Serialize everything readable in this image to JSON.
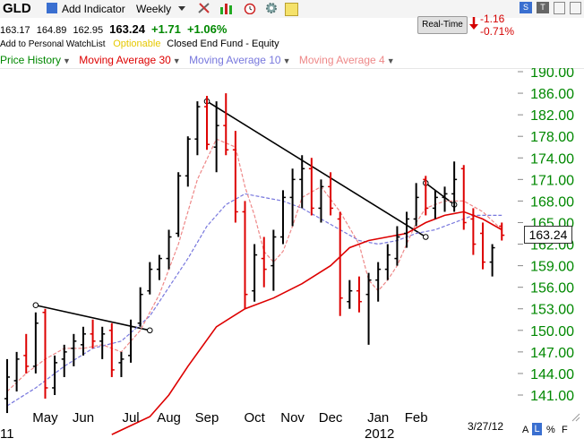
{
  "header": {
    "symbol": "GLD",
    "add_indicator": "Add Indicator",
    "period": "Weekly",
    "realtime": "Real-Time",
    "change_value": "-1.16",
    "change_pct": "-0.71%"
  },
  "quote": {
    "open": "163.17",
    "high": "164.89",
    "low": "162.95",
    "last": "163.24",
    "change": "+1.71",
    "change_pct": "+1.06%"
  },
  "info": {
    "watchlist": "Add to Personal WatchList",
    "optionable": "Optionable",
    "fund_type": "Closed End Fund - Equity"
  },
  "legend": {
    "price": "Price History",
    "ma30": "Moving Average 30",
    "ma10": "Moving Average 10",
    "ma4": "Moving Average 4"
  },
  "footer": {
    "date": "3/27/12",
    "year_left": "11",
    "year_right": "2012",
    "btn_a": "A",
    "btn_l": "L",
    "btn_pct": "%",
    "btn_f": "F"
  },
  "colors": {
    "ma30": "#dd0000",
    "ma10": "#7777dd",
    "ma4": "#ee8888",
    "up": "#000000",
    "down": "#dd0000",
    "axis_text": "#008800"
  },
  "chart_data": {
    "type": "ohlc",
    "ylim": [
      139.5,
      191.5
    ],
    "yticks": [
      141,
      144,
      147,
      150,
      153,
      156,
      159,
      162,
      165,
      168,
      171,
      174,
      178,
      182,
      186,
      190
    ],
    "ytick_labels": [
      "141.00",
      "144.00",
      "147.00",
      "150.00",
      "153.00",
      "156.00",
      "159.00",
      "162.00",
      "165.00",
      "168.00",
      "171.00",
      "174.00",
      "178.00",
      "182.00",
      "186.00",
      "190.00"
    ],
    "last_price_label": "163.24",
    "months": [
      "May",
      "Jun",
      "Jul",
      "Aug",
      "Sep",
      "Oct",
      "Nov",
      "Dec",
      "Jan",
      "Feb"
    ],
    "month_week_index": [
      4,
      8,
      13,
      17,
      21,
      26,
      30,
      34,
      39,
      43
    ],
    "bars": [
      {
        "o": 140.5,
        "h": 146.0,
        "l": 138.5,
        "c": 143.5
      },
      {
        "o": 143.0,
        "h": 147.0,
        "l": 141.5,
        "c": 146.0
      },
      {
        "o": 146.5,
        "h": 149.5,
        "l": 144.0,
        "c": 145.0
      },
      {
        "o": 145.0,
        "h": 152.5,
        "l": 144.0,
        "c": 151.0
      },
      {
        "o": 152.5,
        "h": 153.0,
        "l": 140.5,
        "c": 142.0
      },
      {
        "o": 142.0,
        "h": 146.5,
        "l": 141.0,
        "c": 145.5
      },
      {
        "o": 146.0,
        "h": 148.0,
        "l": 143.5,
        "c": 147.0
      },
      {
        "o": 147.5,
        "h": 149.5,
        "l": 145.0,
        "c": 148.5
      },
      {
        "o": 148.0,
        "h": 150.5,
        "l": 146.5,
        "c": 149.5
      },
      {
        "o": 149.5,
        "h": 151.5,
        "l": 147.5,
        "c": 148.5
      },
      {
        "o": 148.5,
        "h": 150.5,
        "l": 146.0,
        "c": 149.5
      },
      {
        "o": 150.0,
        "h": 151.0,
        "l": 143.5,
        "c": 144.5
      },
      {
        "o": 145.5,
        "h": 147.0,
        "l": 143.5,
        "c": 146.0
      },
      {
        "o": 146.5,
        "h": 151.5,
        "l": 145.5,
        "c": 150.5
      },
      {
        "o": 151.0,
        "h": 156.0,
        "l": 150.5,
        "c": 155.0
      },
      {
        "o": 155.5,
        "h": 159.5,
        "l": 155.0,
        "c": 158.5
      },
      {
        "o": 158.5,
        "h": 160.5,
        "l": 157.0,
        "c": 160.0
      },
      {
        "o": 160.0,
        "h": 164.0,
        "l": 158.5,
        "c": 163.0
      },
      {
        "o": 163.5,
        "h": 172.0,
        "l": 163.0,
        "c": 171.5
      },
      {
        "o": 171.5,
        "h": 178.0,
        "l": 170.0,
        "c": 177.5
      },
      {
        "o": 177.5,
        "h": 184.5,
        "l": 174.5,
        "c": 183.5
      },
      {
        "o": 183.5,
        "h": 185.5,
        "l": 175.5,
        "c": 176.5
      },
      {
        "o": 176.0,
        "h": 184.5,
        "l": 172.0,
        "c": 180.0
      },
      {
        "o": 180.0,
        "h": 186.0,
        "l": 174.5,
        "c": 175.5
      },
      {
        "o": 175.5,
        "h": 179.0,
        "l": 165.0,
        "c": 166.5
      },
      {
        "o": 166.5,
        "h": 168.0,
        "l": 153.0,
        "c": 155.0
      },
      {
        "o": 155.5,
        "h": 162.0,
        "l": 154.0,
        "c": 160.5
      },
      {
        "o": 160.0,
        "h": 163.0,
        "l": 156.0,
        "c": 158.5
      },
      {
        "o": 159.0,
        "h": 164.0,
        "l": 155.5,
        "c": 163.0
      },
      {
        "o": 163.0,
        "h": 169.5,
        "l": 162.0,
        "c": 168.5
      },
      {
        "o": 168.5,
        "h": 172.5,
        "l": 164.5,
        "c": 171.0
      },
      {
        "o": 171.0,
        "h": 174.5,
        "l": 167.0,
        "c": 172.5
      },
      {
        "o": 172.5,
        "h": 174.0,
        "l": 166.0,
        "c": 167.0
      },
      {
        "o": 167.0,
        "h": 171.0,
        "l": 165.0,
        "c": 170.0
      },
      {
        "o": 170.0,
        "h": 172.0,
        "l": 166.0,
        "c": 167.0
      },
      {
        "o": 165.5,
        "h": 166.5,
        "l": 152.0,
        "c": 154.5
      },
      {
        "o": 154.0,
        "h": 157.0,
        "l": 153.0,
        "c": 155.5
      },
      {
        "o": 155.5,
        "h": 157.5,
        "l": 152.5,
        "c": 154.0
      },
      {
        "o": 155.0,
        "h": 158.0,
        "l": 148.0,
        "c": 157.0
      },
      {
        "o": 157.0,
        "h": 159.5,
        "l": 154.0,
        "c": 158.5
      },
      {
        "o": 158.5,
        "h": 162.0,
        "l": 157.0,
        "c": 160.5
      },
      {
        "o": 160.0,
        "h": 164.5,
        "l": 159.0,
        "c": 163.0
      },
      {
        "o": 163.5,
        "h": 166.5,
        "l": 161.5,
        "c": 165.5
      },
      {
        "o": 165.5,
        "h": 170.5,
        "l": 164.5,
        "c": 168.5
      },
      {
        "o": 171.0,
        "h": 171.5,
        "l": 166.0,
        "c": 167.0
      },
      {
        "o": 167.0,
        "h": 169.5,
        "l": 165.5,
        "c": 168.5
      },
      {
        "o": 168.5,
        "h": 170.0,
        "l": 166.5,
        "c": 169.0
      },
      {
        "o": 169.0,
        "h": 173.5,
        "l": 166.5,
        "c": 171.0
      },
      {
        "o": 172.5,
        "h": 173.0,
        "l": 164.0,
        "c": 165.0
      },
      {
        "o": 165.5,
        "h": 167.0,
        "l": 160.5,
        "c": 162.0
      },
      {
        "o": 163.5,
        "h": 165.0,
        "l": 158.5,
        "c": 159.5
      },
      {
        "o": 159.5,
        "h": 162.0,
        "l": 157.5,
        "c": 161.5
      },
      {
        "o": 164.5,
        "h": 165.0,
        "l": 162.5,
        "c": 163.24
      }
    ],
    "ma30": [
      [
        11,
        135.5
      ],
      [
        15,
        138.0
      ],
      [
        17,
        141.0
      ],
      [
        19,
        145.0
      ],
      [
        22,
        150.5
      ],
      [
        25,
        153.0
      ],
      [
        28,
        154.5
      ],
      [
        31,
        156.5
      ],
      [
        34,
        159.0
      ],
      [
        36,
        161.5
      ],
      [
        38,
        162.5
      ],
      [
        40,
        163.0
      ],
      [
        42,
        163.5
      ],
      [
        44,
        165.0
      ],
      [
        46,
        166.0
      ],
      [
        48,
        166.5
      ],
      [
        50,
        165.5
      ],
      [
        52,
        164.0
      ]
    ],
    "ma10": [
      [
        0,
        139.5
      ],
      [
        3,
        142.0
      ],
      [
        6,
        145.0
      ],
      [
        9,
        147.5
      ],
      [
        12,
        148.5
      ],
      [
        15,
        152.0
      ],
      [
        17,
        156.0
      ],
      [
        19,
        160.0
      ],
      [
        21,
        164.5
      ],
      [
        23,
        167.5
      ],
      [
        25,
        169.0
      ],
      [
        27,
        168.5
      ],
      [
        29,
        168.0
      ],
      [
        31,
        167.0
      ],
      [
        33,
        165.5
      ],
      [
        35,
        164.0
      ],
      [
        37,
        162.5
      ],
      [
        39,
        162.0
      ],
      [
        41,
        162.5
      ],
      [
        43,
        163.5
      ],
      [
        45,
        164.0
      ],
      [
        47,
        165.0
      ],
      [
        49,
        166.0
      ],
      [
        52,
        166.0
      ]
    ],
    "ma4": [
      [
        0,
        141.5
      ],
      [
        2,
        144.0
      ],
      [
        4,
        146.0
      ],
      [
        6,
        147.5
      ],
      [
        8,
        147.5
      ],
      [
        10,
        148.0
      ],
      [
        12,
        147.0
      ],
      [
        14,
        150.0
      ],
      [
        16,
        155.0
      ],
      [
        18,
        162.0
      ],
      [
        20,
        171.0
      ],
      [
        22,
        177.5
      ],
      [
        24,
        176.0
      ],
      [
        25,
        170.0
      ],
      [
        26,
        166.0
      ],
      [
        27,
        161.0
      ],
      [
        28,
        159.5
      ],
      [
        29,
        161.0
      ],
      [
        30,
        164.5
      ],
      [
        31,
        168.5
      ],
      [
        33,
        170.0
      ],
      [
        35,
        166.5
      ],
      [
        37,
        162.0
      ],
      [
        38,
        157.0
      ],
      [
        39,
        155.5
      ],
      [
        40,
        157.0
      ],
      [
        41,
        159.0
      ],
      [
        42,
        162.0
      ],
      [
        43,
        165.0
      ],
      [
        44,
        167.0
      ],
      [
        46,
        168.0
      ],
      [
        48,
        168.0
      ],
      [
        50,
        166.5
      ],
      [
        52,
        164.0
      ]
    ],
    "trendlines": [
      {
        "from": [
          3,
          153.5
        ],
        "to": [
          15,
          150.0
        ]
      },
      {
        "from": [
          21,
          184.5
        ],
        "to": [
          44,
          163.0
        ]
      },
      {
        "from": [
          44,
          170.5
        ],
        "to": [
          47,
          167.5
        ]
      }
    ]
  }
}
